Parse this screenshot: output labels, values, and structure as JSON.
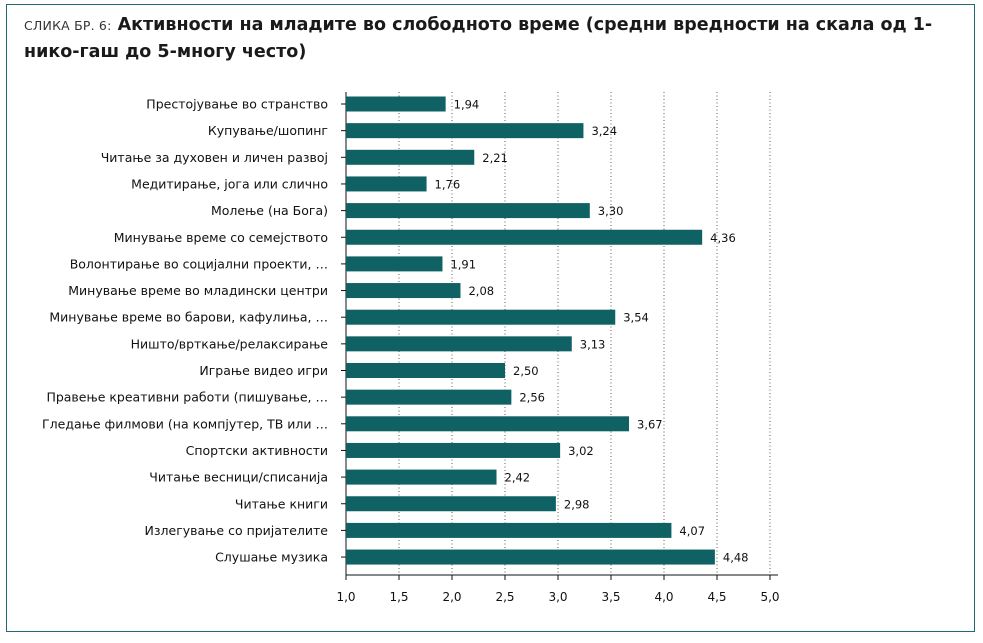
{
  "figure": {
    "prefix": "СЛИКА БР. 6:",
    "title": "Активности на младите во слободното време (средни вредности на скала од 1-нико-гаш до 5-многу често)"
  },
  "colors": {
    "bar": "#0f6163",
    "frame": "#1e6a6e",
    "grid": "#333333"
  },
  "chart_data": {
    "type": "bar",
    "orientation": "horizontal",
    "xlim": [
      1.0,
      5.0
    ],
    "xticks": [
      "1,0",
      "1,5",
      "2,0",
      "2,5",
      "3,0",
      "3,5",
      "4,0",
      "4,5",
      "5,0"
    ],
    "grid": "vertical dotted",
    "categories": [
      "Престојување во странство",
      "Купување/шопинг",
      "Читање за духовен и личен развој",
      "Медитирање, јога или слично",
      "Молење (на Бога)",
      "Минување време со семејството",
      "Волонтирање во социјални проекти, …",
      "Минување време во младински центри",
      "Минување време во барови, кафулиња, …",
      "Ништо/врткање/релаксирање",
      "Играње видео игри",
      "Правење креативни работи (пишување, …",
      "Гледање филмови (на компјутер, ТВ или …",
      "Спортски активности",
      "Читање весници/списанија",
      "Читање книги",
      "Излегување со пријателите",
      "Слушање музика"
    ],
    "values": [
      1.94,
      3.24,
      2.21,
      1.76,
      3.3,
      4.36,
      1.91,
      2.08,
      3.54,
      3.13,
      2.5,
      2.56,
      3.67,
      3.02,
      2.42,
      2.98,
      4.07,
      4.48
    ],
    "labels": [
      "1,94",
      "3,24",
      "2,21",
      "1,76",
      "3,30",
      "4,36",
      "1,91",
      "2,08",
      "3,54",
      "3,13",
      "2,50",
      "2,56",
      "3,67",
      "3,02",
      "2,42",
      "2,98",
      "4,07",
      "4,48"
    ]
  }
}
